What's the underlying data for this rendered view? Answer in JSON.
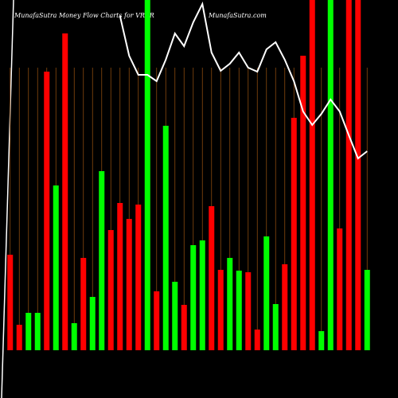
{
  "chart_data": {
    "type": "bar",
    "title": "MunafaSutra  Money Flow  Charts for VRAR",
    "subtitle": "MunafaSutra.com",
    "values": [
      120,
      32,
      47,
      47,
      350,
      207,
      398,
      34,
      116,
      67,
      225,
      151,
      185,
      165,
      183,
      440,
      74,
      282,
      86,
      57,
      132,
      138,
      181,
      101,
      116,
      100,
      98,
      26,
      143,
      58,
      108,
      292,
      370,
      440,
      24,
      440,
      153,
      440,
      440,
      101
    ],
    "colors": [
      "#ff0000",
      "#ff0000",
      "#00ff00",
      "#00ff00",
      "#ff0000",
      "#00ff00",
      "#ff0000",
      "#00ff00",
      "#ff0000",
      "#00ff00",
      "#00ff00",
      "#ff0000",
      "#ff0000",
      "#ff0000",
      "#ff0000",
      "#00ff00",
      "#ff0000",
      "#00ff00",
      "#00ff00",
      "#ff0000",
      "#00ff00",
      "#00ff00",
      "#ff0000",
      "#ff0000",
      "#00ff00",
      "#00ff00",
      "#ff0000",
      "#ff0000",
      "#00ff00",
      "#00ff00",
      "#ff0000",
      "#ff0000",
      "#ff0000",
      "#ff0000",
      "#00ff00",
      "#00ff00",
      "#ff0000",
      "#ff0000",
      "#ff0000",
      "#00ff00"
    ],
    "line": {
      "color": "#ffffff",
      "values": [
        null,
        null,
        null,
        null,
        null,
        null,
        null,
        null,
        null,
        null,
        null,
        null,
        420,
        370,
        346,
        346,
        338,
        365,
        398,
        382,
        412,
        435,
        374,
        351,
        360,
        374,
        355,
        350,
        378,
        387,
        365,
        338,
        300,
        283,
        297,
        315,
        300,
        270,
        241,
        250
      ]
    },
    "ylim": [
      0,
      440
    ],
    "grid": true,
    "grid_color": "#8b4a0e"
  }
}
